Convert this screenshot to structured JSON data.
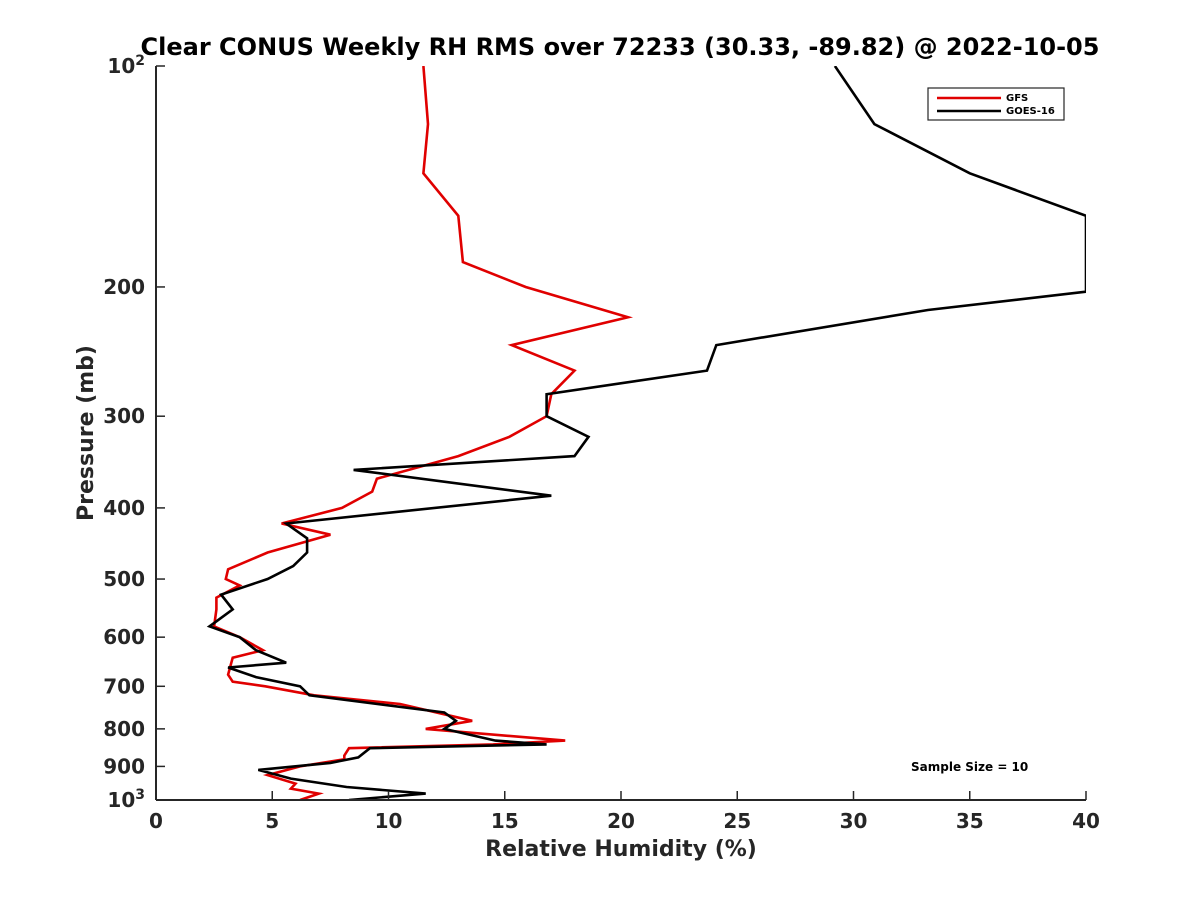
{
  "chart_data": {
    "type": "line",
    "title": "Clear CONUS Weekly RH RMS over 72233 (30.33, -89.82) @ 2022-10-05",
    "xlabel": "Relative Humidity (%)",
    "ylabel": "Pressure (mb)",
    "xlim": [
      0,
      40
    ],
    "ylim": [
      100,
      1000
    ],
    "y_scale": "log",
    "y_reversed": true,
    "xticks": [
      0,
      5,
      10,
      15,
      20,
      25,
      30,
      35,
      40
    ],
    "xtick_labels": [
      "0",
      "5",
      "10",
      "15",
      "20",
      "25",
      "30",
      "35",
      "40"
    ],
    "yticks": [
      {
        "value": 100,
        "base": "10",
        "exp": "2"
      },
      {
        "value": 200,
        "base": "200",
        "exp": ""
      },
      {
        "value": 300,
        "base": "300",
        "exp": ""
      },
      {
        "value": 400,
        "base": "400",
        "exp": ""
      },
      {
        "value": 500,
        "base": "500",
        "exp": ""
      },
      {
        "value": 600,
        "base": "600",
        "exp": ""
      },
      {
        "value": 700,
        "base": "700",
        "exp": ""
      },
      {
        "value": 800,
        "base": "800",
        "exp": ""
      },
      {
        "value": 900,
        "base": "900",
        "exp": ""
      },
      {
        "value": 1000,
        "base": "10",
        "exp": "3"
      }
    ],
    "grid": false,
    "legend_position": "top-right",
    "annotation": "Sample Size = 10",
    "series": [
      {
        "name": "GFS",
        "color": "#e00000",
        "points": [
          [
            11.5,
            100
          ],
          [
            11.7,
            120
          ],
          [
            11.5,
            140
          ],
          [
            13.0,
            160
          ],
          [
            13.2,
            185
          ],
          [
            15.9,
            200
          ],
          [
            20.3,
            220
          ],
          [
            15.3,
            240
          ],
          [
            18.0,
            260
          ],
          [
            17.0,
            280
          ],
          [
            16.8,
            300
          ],
          [
            15.2,
            320
          ],
          [
            13.0,
            340
          ],
          [
            9.5,
            365
          ],
          [
            9.3,
            380
          ],
          [
            8.0,
            400
          ],
          [
            5.4,
            420
          ],
          [
            7.5,
            435
          ],
          [
            4.8,
            460
          ],
          [
            3.1,
            485
          ],
          [
            3.0,
            500
          ],
          [
            3.6,
            510
          ],
          [
            2.6,
            530
          ],
          [
            2.6,
            550
          ],
          [
            2.5,
            580
          ],
          [
            3.6,
            600
          ],
          [
            4.6,
            625
          ],
          [
            3.3,
            640
          ],
          [
            3.1,
            675
          ],
          [
            3.3,
            690
          ],
          [
            4.7,
            700
          ],
          [
            6.8,
            720
          ],
          [
            10.5,
            740
          ],
          [
            13.6,
            780
          ],
          [
            11.6,
            800
          ],
          [
            17.6,
            830
          ],
          [
            14.5,
            840
          ],
          [
            8.3,
            850
          ],
          [
            8.1,
            870
          ],
          [
            8.1,
            880
          ],
          [
            6.2,
            900
          ],
          [
            4.8,
            925
          ],
          [
            6.0,
            950
          ],
          [
            5.8,
            965
          ],
          [
            7.0,
            980
          ],
          [
            6.2,
            1000
          ]
        ]
      },
      {
        "name": "GOES-16",
        "color": "#000000",
        "points": [
          [
            29.2,
            100
          ],
          [
            30.9,
            120
          ],
          [
            35.0,
            140
          ],
          [
            40.0,
            160
          ],
          [
            40.0,
            203
          ],
          [
            33.2,
            215
          ],
          [
            24.1,
            240
          ],
          [
            23.7,
            260
          ],
          [
            16.8,
            280
          ],
          [
            16.8,
            300
          ],
          [
            18.6,
            320
          ],
          [
            18.0,
            340
          ],
          [
            8.5,
            355
          ],
          [
            17.0,
            385
          ],
          [
            5.6,
            420
          ],
          [
            6.5,
            440
          ],
          [
            6.5,
            460
          ],
          [
            5.9,
            480
          ],
          [
            4.8,
            500
          ],
          [
            2.8,
            525
          ],
          [
            3.3,
            550
          ],
          [
            2.3,
            580
          ],
          [
            3.6,
            600
          ],
          [
            4.3,
            625
          ],
          [
            5.6,
            650
          ],
          [
            3.1,
            660
          ],
          [
            4.3,
            680
          ],
          [
            6.2,
            700
          ],
          [
            6.6,
            720
          ],
          [
            12.4,
            760
          ],
          [
            12.9,
            780
          ],
          [
            12.4,
            800
          ],
          [
            14.6,
            830
          ],
          [
            16.8,
            840
          ],
          [
            9.2,
            850
          ],
          [
            8.7,
            875
          ],
          [
            7.5,
            890
          ],
          [
            4.4,
            910
          ],
          [
            5.8,
            935
          ],
          [
            8.2,
            960
          ],
          [
            11.6,
            980
          ],
          [
            8.3,
            1000
          ]
        ]
      }
    ]
  }
}
